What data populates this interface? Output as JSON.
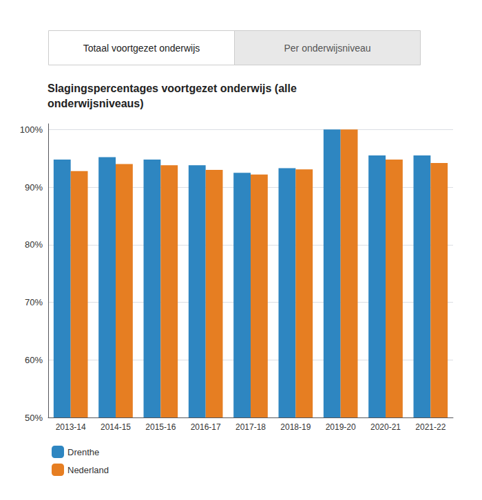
{
  "chart_data": {
    "type": "bar",
    "title": "Slagingspercentages voortgezet onderwijs (alle\nonderwijsniveaus)",
    "categories": [
      "2013-14",
      "2014-15",
      "2015-16",
      "2016-17",
      "2017-18",
      "2018-19",
      "2019-20",
      "2020-21",
      "2021-22"
    ],
    "series": [
      {
        "name": "Drenthe",
        "color": "#2e86c1",
        "values": [
          94.8,
          95.2,
          94.8,
          93.8,
          92.5,
          93.3,
          100.0,
          95.5,
          95.5
        ]
      },
      {
        "name": "Nederland",
        "color": "#e67e22",
        "values": [
          92.8,
          94.0,
          93.8,
          93.0,
          92.2,
          93.1,
          100.0,
          94.8,
          94.2
        ]
      }
    ],
    "ylim": [
      50,
      101
    ],
    "yticks": [
      {
        "value": 50,
        "label": "50%"
      },
      {
        "value": 60,
        "label": "60%"
      },
      {
        "value": 70,
        "label": "70%"
      },
      {
        "value": 80,
        "label": "80%"
      },
      {
        "value": 90,
        "label": "90%"
      },
      {
        "value": 100,
        "label": "100%"
      }
    ],
    "grid": true,
    "legend": "lower left",
    "annotations": [
      "Totaal voortgezet onderwijs",
      "Per onderwijsniveau"
    ]
  }
}
